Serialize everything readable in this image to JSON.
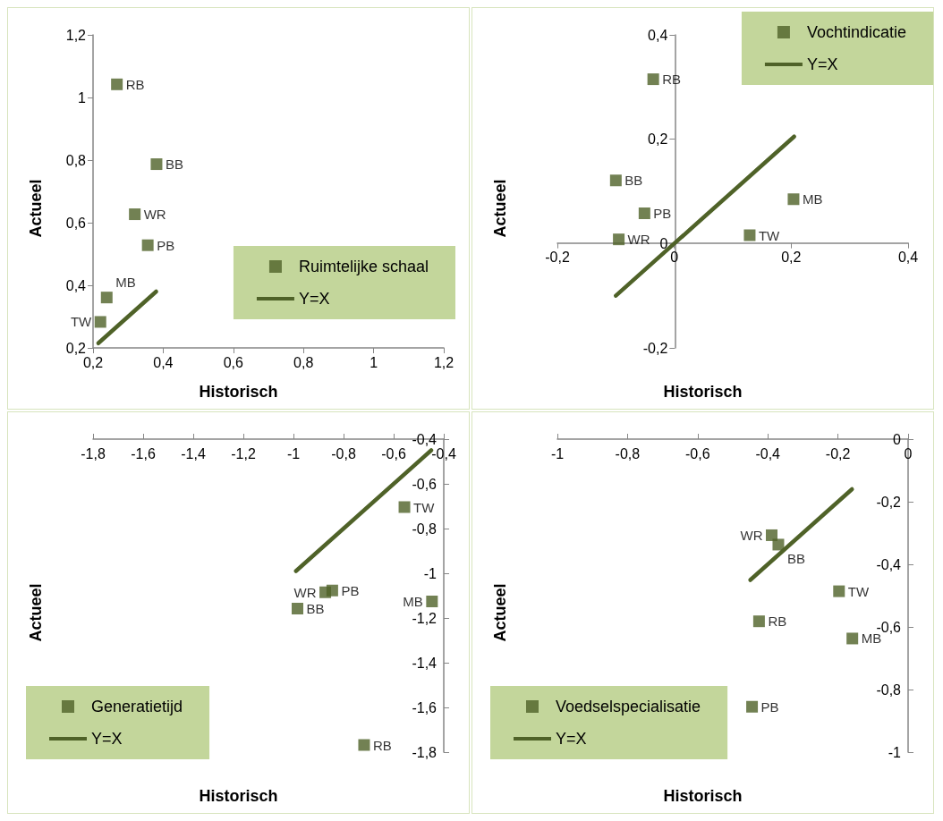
{
  "chart_data": [
    {
      "type": "scatter",
      "xlabel": "Historisch",
      "ylabel": "Actueel",
      "marker": "square",
      "legend": "bottom right",
      "grid": false,
      "xlim": [
        0.2,
        1.2
      ],
      "ylim": [
        0.2,
        1.2
      ],
      "xticks": [
        {
          "value": 0.2,
          "label": "0,2"
        },
        {
          "value": 0.4,
          "label": "0,4"
        },
        {
          "value": 0.6,
          "label": "0,6"
        },
        {
          "value": 0.8,
          "label": "0,8"
        },
        1,
        {
          "value": 1.2,
          "label": "1,2"
        }
      ],
      "yticks": [
        {
          "value": 0.2,
          "label": "0,2"
        },
        {
          "value": 0.4,
          "label": "0,4"
        },
        {
          "value": 0.6,
          "label": "0,6"
        },
        {
          "value": 0.8,
          "label": "0,8"
        },
        1,
        {
          "value": 1.2,
          "label": "1,2"
        }
      ],
      "series": [
        {
          "name": "Ruimtelijke schaal",
          "type": "scatter",
          "color": "#4f6228",
          "x": [
            0.268,
            0.381,
            0.319,
            0.356,
            0.239,
            0.221
          ],
          "values": [
            1.042,
            0.787,
            0.627,
            0.528,
            0.361,
            0.283
          ]
        },
        {
          "name": "Y=X",
          "type": "line",
          "marker": "none",
          "color": "#4f6228",
          "x": [
            0.215,
            0.38
          ],
          "values": [
            0.215,
            0.38
          ]
        }
      ],
      "annotations": [
        {
          "text": "RB",
          "x": 0.268,
          "y": 1.042
        },
        {
          "text": "BB",
          "x": 0.381,
          "y": 0.787
        },
        {
          "text": "WR",
          "x": 0.319,
          "y": 0.627
        },
        {
          "text": "PB",
          "x": 0.356,
          "y": 0.528
        },
        {
          "text": "MB",
          "x": 0.239,
          "y": 0.361
        },
        {
          "text": "TW",
          "x": 0.221,
          "y": 0.283
        }
      ]
    },
    {
      "type": "scatter",
      "xlabel": "Historisch",
      "ylabel": "Actueel",
      "marker": "square",
      "legend": "top right",
      "grid": false,
      "xlim": [
        -0.2,
        0.4
      ],
      "ylim": [
        -0.2,
        0.4
      ],
      "xticks": [
        {
          "value": -0.2,
          "label": "-0,2"
        },
        0,
        {
          "value": 0.2,
          "label": "0,2"
        },
        {
          "value": 0.4,
          "label": "0,4"
        }
      ],
      "yticks": [
        {
          "value": -0.2,
          "label": "-0,2"
        },
        0,
        {
          "value": 0.2,
          "label": "0,2"
        },
        {
          "value": 0.4,
          "label": "0,4"
        }
      ],
      "series": [
        {
          "name": "Vochtindicatie",
          "type": "scatter",
          "color": "#4f6228",
          "x": [
            -0.036,
            -0.1,
            -0.051,
            -0.095,
            0.129,
            0.204
          ],
          "values": [
            0.315,
            0.121,
            0.058,
            0.008,
            0.016,
            0.085
          ]
        },
        {
          "name": "Y=X",
          "type": "line",
          "marker": "none",
          "color": "#4f6228",
          "x": [
            -0.1,
            0.205
          ],
          "values": [
            -0.1,
            0.205
          ]
        }
      ],
      "annotations": [
        {
          "text": "RB",
          "x": -0.036,
          "y": 0.315
        },
        {
          "text": "BB",
          "x": -0.1,
          "y": 0.121
        },
        {
          "text": "PB",
          "x": -0.051,
          "y": 0.058
        },
        {
          "text": "WR",
          "x": -0.095,
          "y": 0.008
        },
        {
          "text": "TW",
          "x": 0.129,
          "y": 0.016
        },
        {
          "text": "MB",
          "x": 0.204,
          "y": 0.085
        }
      ]
    },
    {
      "type": "scatter",
      "xlabel": "Historisch",
      "ylabel": "Actueel",
      "marker": "square",
      "legend": "bottom left",
      "grid": false,
      "xlim": [
        -1.8,
        -0.4
      ],
      "ylim": [
        -1.8,
        -0.4
      ],
      "xticks": [
        {
          "value": -1.8,
          "label": "-1,8"
        },
        {
          "value": -1.6,
          "label": "-1,6"
        },
        {
          "value": -1.4,
          "label": "-1,4"
        },
        {
          "value": -1.2,
          "label": "-1,2"
        },
        -1,
        {
          "value": -0.8,
          "label": "-0,8"
        },
        {
          "value": -0.6,
          "label": "-0,6"
        },
        {
          "value": -0.4,
          "label": "-0,4"
        }
      ],
      "yticks": [
        {
          "value": -1.8,
          "label": "-1,8"
        },
        {
          "value": -1.6,
          "label": "-1,6"
        },
        {
          "value": -1.4,
          "label": "-1,4"
        },
        {
          "value": -1.2,
          "label": "-1,2"
        },
        -1,
        {
          "value": -0.8,
          "label": "-0,8"
        },
        {
          "value": -0.6,
          "label": "-0,6"
        },
        {
          "value": -0.4,
          "label": "-0,4"
        }
      ],
      "series": [
        {
          "name": "Generatietijd",
          "type": "scatter",
          "color": "#4f6228",
          "x": [
            -0.557,
            -0.873,
            -0.845,
            -0.984,
            -0.447,
            -0.718
          ],
          "values": [
            -0.704,
            -1.085,
            -1.077,
            -1.158,
            -1.126,
            -1.768
          ]
        },
        {
          "name": "Y=X",
          "type": "line",
          "marker": "none",
          "color": "#4f6228",
          "x": [
            -0.99,
            -0.45
          ],
          "values": [
            -0.99,
            -0.45
          ]
        }
      ],
      "annotations": [
        {
          "text": "TW",
          "x": -0.557,
          "y": -0.704
        },
        {
          "text": "WR",
          "x": -0.873,
          "y": -1.085
        },
        {
          "text": "PB",
          "x": -0.845,
          "y": -1.077
        },
        {
          "text": "BB",
          "x": -0.984,
          "y": -1.158
        },
        {
          "text": "MB",
          "x": -0.447,
          "y": -1.126
        },
        {
          "text": "RB",
          "x": -0.718,
          "y": -1.768
        }
      ]
    },
    {
      "type": "scatter",
      "xlabel": "Historisch",
      "ylabel": "Actueel",
      "marker": "square",
      "legend": "bottom left",
      "grid": false,
      "xlim": [
        -1,
        0
      ],
      "ylim": [
        -1,
        0
      ],
      "xticks": [
        -1,
        {
          "value": -0.8,
          "label": "-0,8"
        },
        {
          "value": -0.6,
          "label": "-0,6"
        },
        {
          "value": -0.4,
          "label": "-0,4"
        },
        {
          "value": -0.2,
          "label": "-0,2"
        },
        0
      ],
      "yticks": [
        -1,
        {
          "value": -0.8,
          "label": "-0,8"
        },
        {
          "value": -0.6,
          "label": "-0,6"
        },
        {
          "value": -0.4,
          "label": "-0,4"
        },
        {
          "value": -0.2,
          "label": "-0,2"
        },
        0
      ],
      "series": [
        {
          "name": "Voedselspecialisatie",
          "type": "scatter",
          "color": "#4f6228",
          "x": [
            -0.389,
            -0.37,
            -0.197,
            -0.425,
            -0.159,
            -0.445
          ],
          "values": [
            -0.307,
            -0.337,
            -0.486,
            -0.582,
            -0.637,
            -0.855
          ]
        },
        {
          "name": "Y=X",
          "type": "line",
          "marker": "none",
          "color": "#4f6228",
          "x": [
            -0.45,
            -0.16
          ],
          "values": [
            -0.45,
            -0.16
          ]
        }
      ],
      "annotations": [
        {
          "text": "WR",
          "x": -0.389,
          "y": -0.307
        },
        {
          "text": "BB",
          "x": -0.37,
          "y": -0.337
        },
        {
          "text": "TW",
          "x": -0.197,
          "y": -0.486
        },
        {
          "text": "RB",
          "x": -0.425,
          "y": -0.582
        },
        {
          "text": "MB",
          "x": -0.159,
          "y": -0.637
        },
        {
          "text": "PB",
          "x": -0.445,
          "y": -0.855
        }
      ]
    }
  ]
}
